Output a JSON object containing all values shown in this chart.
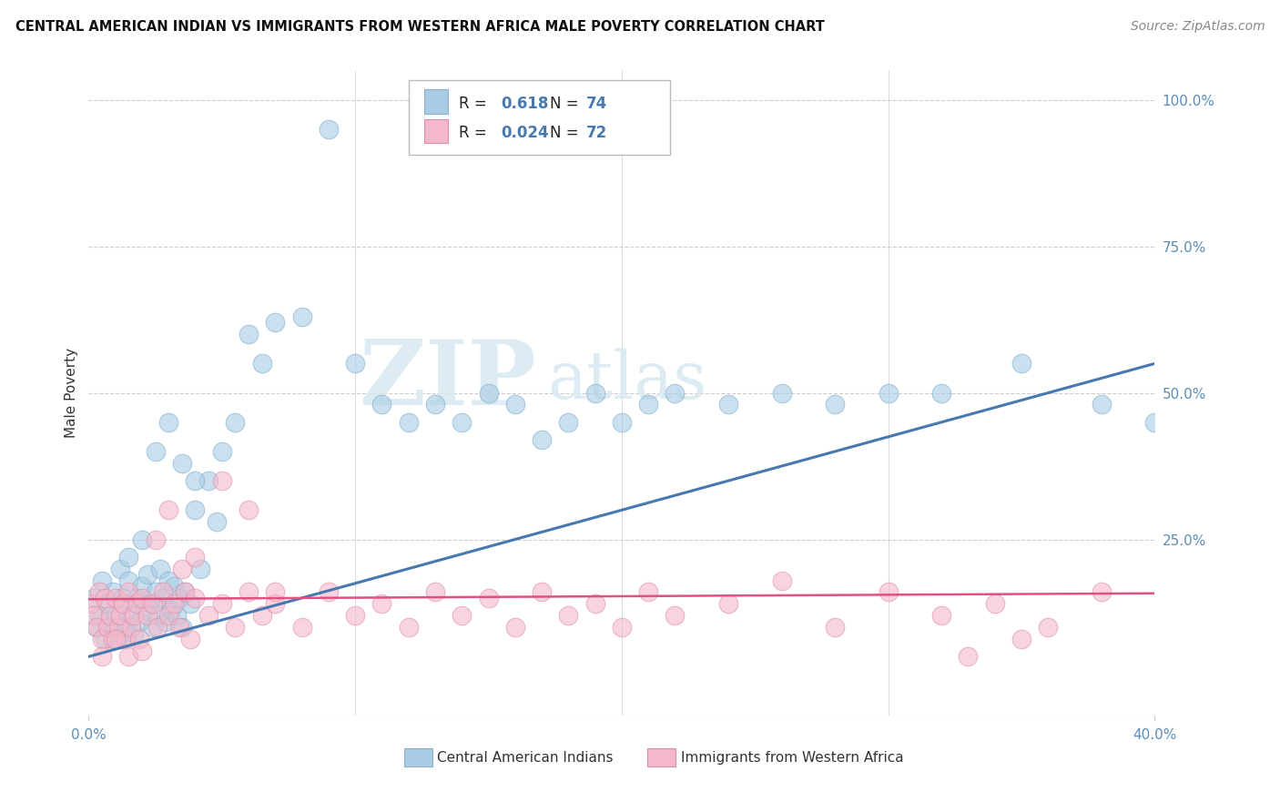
{
  "title": "CENTRAL AMERICAN INDIAN VS IMMIGRANTS FROM WESTERN AFRICA MALE POVERTY CORRELATION CHART",
  "source": "Source: ZipAtlas.com",
  "ylabel": "Male Poverty",
  "xlim": [
    0.0,
    0.4
  ],
  "ylim": [
    -0.05,
    1.05
  ],
  "r_blue": 0.618,
  "n_blue": 74,
  "r_pink": 0.024,
  "n_pink": 72,
  "legend_label_blue": "Central American Indians",
  "legend_label_pink": "Immigrants from Western Africa",
  "blue_color": "#a8cce4",
  "pink_color": "#f4b8cb",
  "blue_line_color": "#4878b0",
  "pink_line_color": "#e05080",
  "watermark_zip": "ZIP",
  "watermark_atlas": "atlas",
  "blue_scatter_x": [
    0.002,
    0.003,
    0.004,
    0.005,
    0.006,
    0.007,
    0.008,
    0.009,
    0.01,
    0.011,
    0.012,
    0.013,
    0.014,
    0.015,
    0.016,
    0.017,
    0.018,
    0.019,
    0.02,
    0.021,
    0.022,
    0.023,
    0.024,
    0.025,
    0.026,
    0.027,
    0.028,
    0.029,
    0.03,
    0.031,
    0.032,
    0.033,
    0.034,
    0.035,
    0.036,
    0.038,
    0.04,
    0.042,
    0.045,
    0.048,
    0.05,
    0.055,
    0.06,
    0.065,
    0.07,
    0.08,
    0.09,
    0.1,
    0.11,
    0.12,
    0.13,
    0.14,
    0.15,
    0.16,
    0.17,
    0.18,
    0.19,
    0.2,
    0.21,
    0.22,
    0.24,
    0.26,
    0.28,
    0.3,
    0.32,
    0.35,
    0.38,
    0.4,
    0.015,
    0.02,
    0.025,
    0.03,
    0.035,
    0.04
  ],
  "blue_scatter_y": [
    0.15,
    0.1,
    0.12,
    0.18,
    0.08,
    0.14,
    0.1,
    0.16,
    0.12,
    0.08,
    0.2,
    0.15,
    0.1,
    0.18,
    0.12,
    0.09,
    0.15,
    0.11,
    0.17,
    0.13,
    0.19,
    0.14,
    0.1,
    0.16,
    0.12,
    0.2,
    0.15,
    0.11,
    0.18,
    0.13,
    0.17,
    0.12,
    0.15,
    0.1,
    0.16,
    0.14,
    0.3,
    0.2,
    0.35,
    0.28,
    0.4,
    0.45,
    0.6,
    0.55,
    0.62,
    0.63,
    0.95,
    0.55,
    0.48,
    0.45,
    0.48,
    0.45,
    0.5,
    0.48,
    0.42,
    0.45,
    0.5,
    0.45,
    0.48,
    0.5,
    0.48,
    0.5,
    0.48,
    0.5,
    0.5,
    0.55,
    0.48,
    0.45,
    0.22,
    0.25,
    0.4,
    0.45,
    0.38,
    0.35
  ],
  "pink_scatter_x": [
    0.001,
    0.002,
    0.003,
    0.004,
    0.005,
    0.006,
    0.007,
    0.008,
    0.009,
    0.01,
    0.011,
    0.012,
    0.013,
    0.014,
    0.015,
    0.016,
    0.017,
    0.018,
    0.019,
    0.02,
    0.022,
    0.024,
    0.026,
    0.028,
    0.03,
    0.032,
    0.034,
    0.036,
    0.038,
    0.04,
    0.045,
    0.05,
    0.055,
    0.06,
    0.065,
    0.07,
    0.08,
    0.09,
    0.1,
    0.11,
    0.12,
    0.13,
    0.14,
    0.15,
    0.16,
    0.17,
    0.18,
    0.19,
    0.2,
    0.21,
    0.22,
    0.24,
    0.26,
    0.28,
    0.3,
    0.32,
    0.34,
    0.36,
    0.38,
    0.005,
    0.01,
    0.015,
    0.02,
    0.025,
    0.03,
    0.035,
    0.04,
    0.05,
    0.06,
    0.33,
    0.35,
    0.07
  ],
  "pink_scatter_y": [
    0.14,
    0.12,
    0.1,
    0.16,
    0.08,
    0.15,
    0.1,
    0.12,
    0.08,
    0.15,
    0.1,
    0.12,
    0.14,
    0.08,
    0.16,
    0.1,
    0.12,
    0.14,
    0.08,
    0.15,
    0.12,
    0.14,
    0.1,
    0.16,
    0.12,
    0.14,
    0.1,
    0.16,
    0.08,
    0.15,
    0.12,
    0.14,
    0.1,
    0.16,
    0.12,
    0.14,
    0.1,
    0.16,
    0.12,
    0.14,
    0.1,
    0.16,
    0.12,
    0.15,
    0.1,
    0.16,
    0.12,
    0.14,
    0.1,
    0.16,
    0.12,
    0.14,
    0.18,
    0.1,
    0.16,
    0.12,
    0.14,
    0.1,
    0.16,
    0.05,
    0.08,
    0.05,
    0.06,
    0.25,
    0.3,
    0.2,
    0.22,
    0.35,
    0.3,
    0.05,
    0.08,
    0.16
  ]
}
